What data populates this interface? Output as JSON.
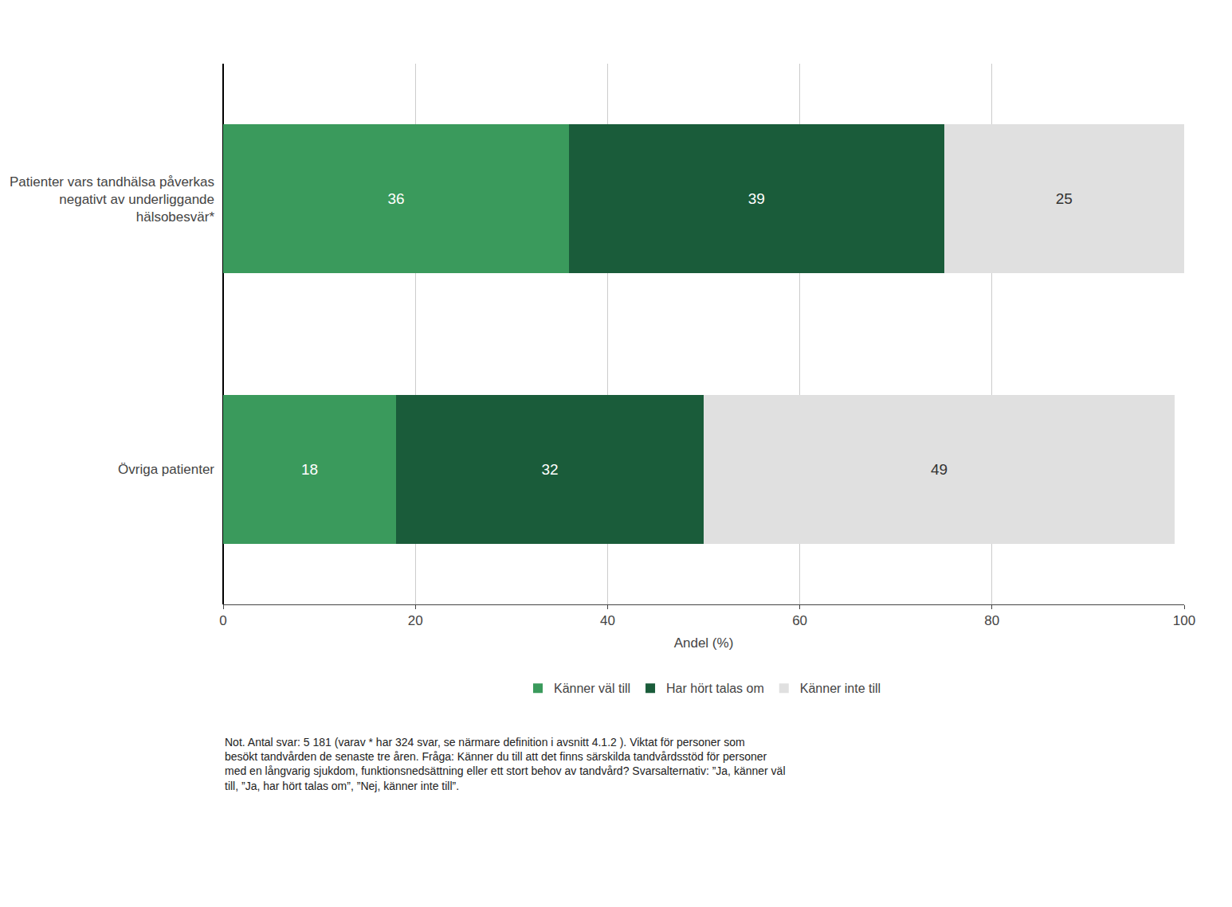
{
  "chart_data": {
    "type": "bar",
    "orientation": "horizontal",
    "stacked": true,
    "data_labels": true,
    "grid": true,
    "legend": "bottom",
    "categories": [
      "Patienter vars tandhälsa påverkas\nnegativt av underliggande\nhälsobesvär*",
      "Övriga patienter"
    ],
    "series": [
      {
        "name": "Känner väl till",
        "color": "#3a9a5c",
        "values": [
          36,
          18
        ]
      },
      {
        "name": "Har hört talas om",
        "color": "#1a5c3a",
        "values": [
          39,
          32
        ]
      },
      {
        "name": "Känner inte till",
        "color": "#e0e0e0",
        "values": [
          25,
          49
        ]
      }
    ],
    "xlim": [
      0,
      100
    ],
    "xticks": [
      0,
      20,
      40,
      60,
      80,
      100
    ],
    "xlabel": "Andel (%)",
    "annotations": [
      "Not. Antal svar: 5 181 (varav * har 324 svar, se närmare definition i avsnitt 4.1.2 ). Viktat för personer som\nbesökt tandvården de senaste tre åren. Fråga: Känner du till att det finns särskilda tandvårdsstöd för personer\nmed en långvarig sjukdom, funktionsnedsättning eller ett stort behov av tandvård? Svarsalternativ: ”Ja, känner väl\ntill, ”Ja, har hört talas om”, ”Nej, känner inte till”."
    ]
  }
}
